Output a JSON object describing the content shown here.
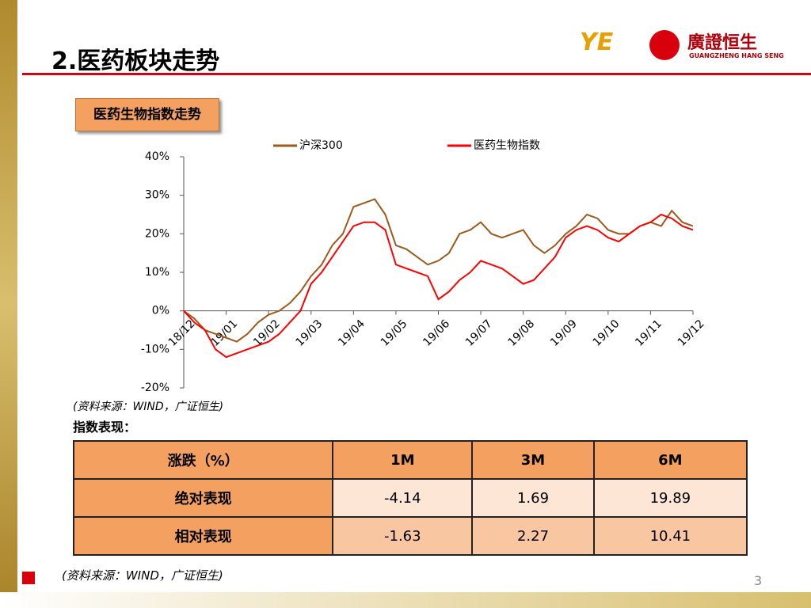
{
  "header": {
    "title": "2.医药板块走势",
    "logo_name": "廣證恒生",
    "logo_sub": "GUANGZHENG HANG SENG"
  },
  "section_label": "医药生物指数走势",
  "chart_data": {
    "type": "line",
    "x": [
      0,
      0.25,
      0.5,
      0.75,
      1,
      1.25,
      1.5,
      1.75,
      2,
      2.25,
      2.5,
      2.75,
      3,
      3.25,
      3.5,
      3.75,
      4,
      4.25,
      4.5,
      4.75,
      5,
      5.25,
      5.5,
      5.75,
      6,
      6.25,
      6.5,
      6.75,
      7,
      7.25,
      7.5,
      7.75,
      8,
      8.25,
      8.5,
      8.75,
      9,
      9.25,
      9.5,
      9.75,
      10,
      10.25,
      10.5,
      10.75,
      11,
      11.25,
      11.5,
      11.75,
      12
    ],
    "series": [
      {
        "name": "沪深300",
        "color": "#9c5a1c",
        "values": [
          0,
          -2,
          -5,
          -6,
          -7,
          -8,
          -6,
          -3,
          -1,
          0,
          2,
          5,
          9,
          12,
          17,
          20,
          27,
          28,
          29,
          25,
          17,
          16,
          14,
          12,
          13,
          15,
          20,
          21,
          23,
          20,
          19,
          20,
          21,
          17,
          15,
          17,
          20,
          22,
          25,
          24,
          21,
          20,
          20,
          22,
          23,
          22,
          26,
          23,
          22
        ]
      },
      {
        "name": "医药生物指数",
        "color": "#ff0000",
        "values": [
          0,
          -3,
          -5,
          -10,
          -12,
          -11,
          -10,
          -9,
          -8,
          -6,
          -3,
          0,
          7,
          10,
          14,
          18,
          22,
          23,
          23,
          21,
          12,
          11,
          10,
          9,
          3,
          5,
          8,
          10,
          13,
          12,
          11,
          9,
          7,
          8,
          11,
          14,
          19,
          21,
          22,
          21,
          19,
          18,
          20,
          22,
          23,
          25,
          24,
          22,
          21
        ]
      }
    ],
    "xlim": [
      0,
      12
    ],
    "xticks": [
      {
        "value": 0,
        "label": "18/12"
      },
      {
        "value": 1,
        "label": "19/01"
      },
      {
        "value": 2,
        "label": "19/02"
      },
      {
        "value": 3,
        "label": "19/03"
      },
      {
        "value": 4,
        "label": "19/04"
      },
      {
        "value": 5,
        "label": "19/05"
      },
      {
        "value": 6,
        "label": "19/06"
      },
      {
        "value": 7,
        "label": "19/07"
      },
      {
        "value": 8,
        "label": "19/08"
      },
      {
        "value": 9,
        "label": "19/09"
      },
      {
        "value": 10,
        "label": "19/10"
      },
      {
        "value": 11,
        "label": "19/11"
      },
      {
        "value": 12,
        "label": "19/12"
      }
    ],
    "ylim": [
      -20,
      40
    ],
    "yticks": [
      {
        "value": -20,
        "label": "-20%"
      },
      {
        "value": -10,
        "label": "-10%"
      },
      {
        "value": 0,
        "label": "0%"
      },
      {
        "value": 10,
        "label": "10%"
      },
      {
        "value": 20,
        "label": "20%"
      },
      {
        "value": 30,
        "label": "30%"
      },
      {
        "value": 40,
        "label": "40%"
      }
    ],
    "grid": false,
    "legend": "top"
  },
  "source_note": "(资料来源：WIND，广证恒生)",
  "table_title": "指数表现：",
  "table": {
    "header": [
      "涨跌（%）",
      "1M",
      "3M",
      "6M"
    ],
    "rows": [
      [
        "绝对表现",
        "-4.14",
        "1.69",
        "19.89"
      ],
      [
        "相对表现",
        "-1.63",
        "2.27",
        "10.41"
      ]
    ]
  },
  "footer_note": "(资料来源：WIND，广证恒生)",
  "page_number": "3"
}
